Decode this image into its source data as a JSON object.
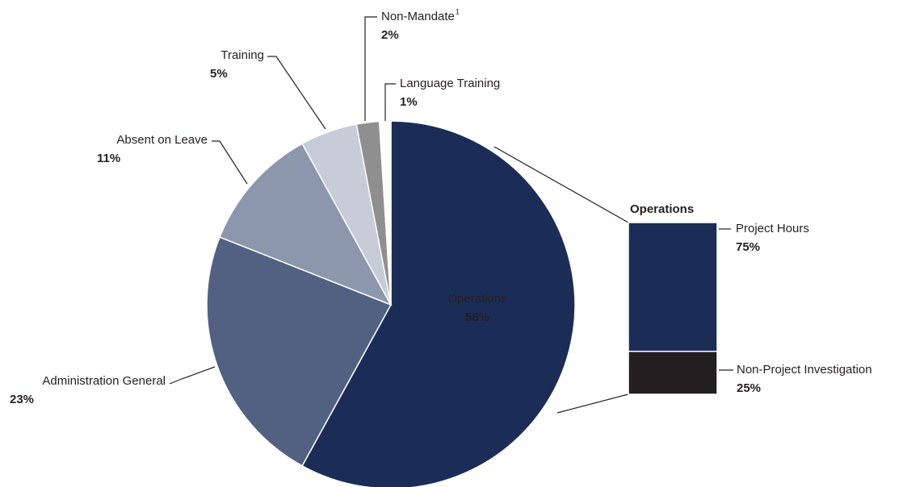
{
  "chart_data": [
    {
      "type": "pie",
      "categories": [
        "Operations",
        "Administration General",
        "Absent on Leave",
        "Training",
        "Non-Mandate",
        "Language Training"
      ],
      "footnotes": [
        null,
        null,
        null,
        null,
        "1",
        null
      ],
      "values": [
        58,
        23,
        11,
        5,
        2,
        1
      ],
      "value_labels": [
        "58%",
        "23%",
        "11%",
        "5%",
        "2%",
        "1%"
      ],
      "colors": [
        "#1b2d57",
        "#526182",
        "#8c97ad",
        "#c7ccd8",
        "#8f8f8f",
        "#ffffff"
      ]
    },
    {
      "type": "stacked-bar",
      "title": "Operations",
      "categories": [
        "Project Hours",
        "Non-Project Investigation"
      ],
      "values": [
        75,
        25
      ],
      "value_labels": [
        "75%",
        "25%"
      ],
      "colors": [
        "#1b2d57",
        "#231f20"
      ]
    }
  ]
}
